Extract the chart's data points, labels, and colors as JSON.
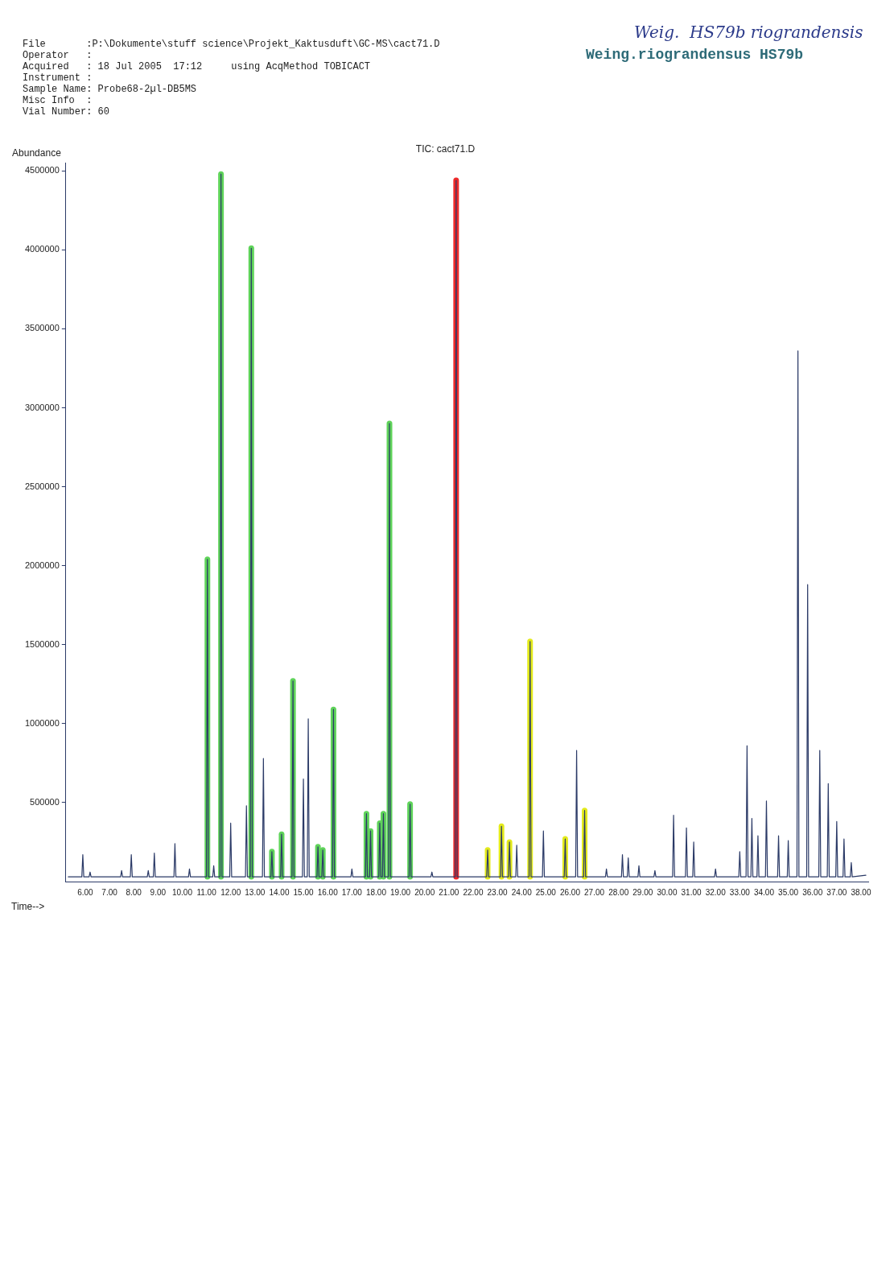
{
  "chart_data": {
    "type": "line",
    "title": "TIC: cact71.D",
    "xlabel": "Time-->",
    "ylabel": "Abundance",
    "annotations": [
      "File       :P:\\Dokumente\\stuff science\\Projekt_Kaktusduft\\GC-MS\\cact71.D",
      "Operator   :",
      "Acquired   : 18 Jul 2005  17:12     using AcqMethod TOBICACT",
      "Instrument :",
      "Sample Name: Probe68-2µl-DB5MS",
      "Misc Info  :",
      "Vial Number: 60",
      "Weig.  HS79b riograndensis",
      "Weing.riograndensus HS79b"
    ],
    "xlim": [
      5.2,
      38.3
    ],
    "xticks": [
      {
        "value": 6,
        "label": "6.00"
      },
      {
        "value": 7,
        "label": "7.00"
      },
      {
        "value": 8,
        "label": "8.00"
      },
      {
        "value": 9,
        "label": "9.00"
      },
      {
        "value": 10,
        "label": "10.00"
      },
      {
        "value": 11,
        "label": "11.00"
      },
      {
        "value": 12,
        "label": "12.00"
      },
      {
        "value": 13,
        "label": "13.00"
      },
      {
        "value": 14,
        "label": "14.00"
      },
      {
        "value": 15,
        "label": "15.00"
      },
      {
        "value": 16,
        "label": "16.00"
      },
      {
        "value": 17,
        "label": "17.00"
      },
      {
        "value": 18,
        "label": "18.00"
      },
      {
        "value": 19,
        "label": "19.00"
      },
      {
        "value": 20,
        "label": "20.00"
      },
      {
        "value": 21,
        "label": "21.00"
      },
      {
        "value": 22,
        "label": "22.00"
      },
      {
        "value": 23,
        "label": "23.00"
      },
      {
        "value": 24,
        "label": "24.00"
      },
      {
        "value": 25,
        "label": "25.00"
      },
      {
        "value": 26,
        "label": "26.00"
      },
      {
        "value": 27,
        "label": "27.00"
      },
      {
        "value": 28,
        "label": "28.00"
      },
      {
        "value": 29,
        "label": "29.00"
      },
      {
        "value": 30,
        "label": "30.00"
      },
      {
        "value": 31,
        "label": "31.00"
      },
      {
        "value": 32,
        "label": "32.00"
      },
      {
        "value": 33,
        "label": "33.00"
      },
      {
        "value": 34,
        "label": "34.00"
      },
      {
        "value": 35,
        "label": "35.00"
      },
      {
        "value": 36,
        "label": "36.00"
      },
      {
        "value": 37,
        "label": "37.00"
      },
      {
        "value": 38,
        "label": "38.00"
      }
    ],
    "ylim": [
      0,
      4550000
    ],
    "yticks": [
      500000,
      1000000,
      1500000,
      2000000,
      2500000,
      3000000,
      3500000,
      4000000,
      4500000
    ],
    "grid": false,
    "legend": false,
    "marker": "none",
    "line_style": "solid",
    "series": [
      {
        "color": "#2b3a67",
        "x": [
          5.3,
          5.86,
          5.9,
          5.94,
          6.16,
          6.2,
          6.24,
          7.46,
          7.5,
          7.54,
          7.86,
          7.9,
          7.94,
          8.56,
          8.6,
          8.64,
          8.81,
          8.85,
          8.89,
          9.66,
          9.7,
          9.74,
          10.26,
          10.3,
          10.34,
          11.0,
          11.04,
          11.08,
          11.26,
          11.3,
          11.34,
          11.56,
          11.6,
          11.64,
          11.96,
          12.0,
          12.04,
          12.61,
          12.65,
          12.69,
          12.81,
          12.85,
          12.89,
          13.31,
          13.35,
          13.39,
          13.66,
          13.7,
          13.74,
          14.06,
          14.1,
          14.14,
          14.53,
          14.57,
          14.61,
          14.96,
          15.0,
          15.04,
          15.16,
          15.2,
          15.24,
          15.56,
          15.6,
          15.64,
          15.76,
          15.8,
          15.84,
          16.2,
          16.24,
          16.28,
          16.96,
          17.0,
          17.04,
          17.56,
          17.6,
          17.64,
          17.73,
          17.77,
          17.81,
          18.11,
          18.15,
          18.19,
          18.26,
          18.3,
          18.34,
          18.51,
          18.55,
          18.59,
          19.36,
          19.4,
          19.44,
          20.26,
          20.3,
          20.34,
          21.26,
          21.3,
          21.34,
          22.56,
          22.6,
          22.64,
          23.13,
          23.17,
          23.21,
          23.46,
          23.5,
          23.54,
          23.76,
          23.8,
          23.84,
          24.31,
          24.35,
          24.39,
          24.86,
          24.9,
          24.94,
          25.76,
          25.8,
          25.84,
          26.23,
          26.27,
          26.31,
          26.56,
          26.6,
          26.64,
          27.46,
          27.5,
          27.54,
          28.12,
          28.16,
          28.2,
          28.36,
          28.4,
          28.44,
          28.8,
          28.84,
          28.88,
          29.46,
          29.5,
          29.54,
          30.23,
          30.27,
          30.31,
          30.76,
          30.8,
          30.84,
          31.06,
          31.1,
          31.14,
          31.96,
          32.0,
          32.04,
          32.96,
          33.0,
          33.04,
          33.26,
          33.3,
          33.34,
          33.46,
          33.5,
          33.54,
          33.71,
          33.75,
          33.79,
          34.06,
          34.1,
          34.14,
          34.56,
          34.6,
          34.64,
          34.96,
          35.0,
          35.04,
          35.36,
          35.4,
          35.44,
          35.76,
          35.8,
          35.84,
          36.26,
          36.3,
          36.34,
          36.61,
          36.65,
          36.69,
          36.96,
          37.0,
          37.04,
          37.26,
          37.3,
          37.34,
          37.56,
          37.6,
          37.64,
          38.2
        ],
        "values": [
          30000,
          30000,
          170000,
          30000,
          30000,
          60000,
          30000,
          30000,
          70000,
          30000,
          30000,
          170000,
          30000,
          30000,
          70000,
          30000,
          30000,
          180000,
          30000,
          30000,
          240000,
          30000,
          30000,
          80000,
          30000,
          30000,
          2040000,
          30000,
          30000,
          100000,
          30000,
          30000,
          4480000,
          30000,
          30000,
          370000,
          30000,
          30000,
          480000,
          30000,
          30000,
          4010000,
          30000,
          30000,
          780000,
          30000,
          30000,
          190000,
          30000,
          30000,
          300000,
          30000,
          30000,
          1270000,
          30000,
          30000,
          650000,
          30000,
          30000,
          1030000,
          30000,
          30000,
          220000,
          30000,
          30000,
          200000,
          30000,
          30000,
          1090000,
          30000,
          30000,
          80000,
          30000,
          30000,
          430000,
          30000,
          30000,
          320000,
          30000,
          30000,
          370000,
          30000,
          30000,
          430000,
          30000,
          30000,
          2900000,
          30000,
          30000,
          490000,
          30000,
          30000,
          60000,
          30000,
          30000,
          4440000,
          30000,
          30000,
          200000,
          30000,
          30000,
          350000,
          30000,
          30000,
          250000,
          30000,
          30000,
          230000,
          30000,
          30000,
          1520000,
          30000,
          30000,
          320000,
          30000,
          30000,
          270000,
          30000,
          30000,
          830000,
          30000,
          30000,
          450000,
          30000,
          30000,
          80000,
          30000,
          30000,
          170000,
          30000,
          30000,
          150000,
          30000,
          30000,
          100000,
          30000,
          30000,
          70000,
          30000,
          30000,
          420000,
          30000,
          30000,
          340000,
          30000,
          30000,
          250000,
          30000,
          30000,
          80000,
          30000,
          30000,
          190000,
          30000,
          30000,
          860000,
          30000,
          30000,
          400000,
          30000,
          30000,
          290000,
          30000,
          30000,
          510000,
          30000,
          30000,
          290000,
          30000,
          30000,
          260000,
          30000,
          30000,
          3360000,
          30000,
          30000,
          1880000,
          30000,
          30000,
          830000,
          30000,
          30000,
          620000,
          30000,
          30000,
          380000,
          30000,
          30000,
          270000,
          30000,
          30000,
          120000,
          30000,
          40000
        ]
      },
      {
        "color": "#5fd35a",
        "x": [
          11.04,
          11.04
        ],
        "values": [
          30000,
          2040000
        ]
      },
      {
        "color": "#5fd35a",
        "x": [
          11.6,
          11.6
        ],
        "values": [
          30000,
          4480000
        ]
      },
      {
        "color": "#5fd35a",
        "x": [
          12.85,
          12.85
        ],
        "values": [
          30000,
          4010000
        ]
      },
      {
        "color": "#5fd35a",
        "x": [
          13.7,
          13.7
        ],
        "values": [
          30000,
          190000
        ]
      },
      {
        "color": "#5fd35a",
        "x": [
          14.1,
          14.1
        ],
        "values": [
          30000,
          300000
        ]
      },
      {
        "color": "#5fd35a",
        "x": [
          14.57,
          14.57
        ],
        "values": [
          30000,
          1270000
        ]
      },
      {
        "color": "#5fd35a",
        "x": [
          15.6,
          15.6
        ],
        "values": [
          30000,
          220000
        ]
      },
      {
        "color": "#5fd35a",
        "x": [
          15.8,
          15.8
        ],
        "values": [
          30000,
          200000
        ]
      },
      {
        "color": "#5fd35a",
        "x": [
          16.24,
          16.24
        ],
        "values": [
          30000,
          1090000
        ]
      },
      {
        "color": "#5fd35a",
        "x": [
          17.6,
          17.6
        ],
        "values": [
          30000,
          430000
        ]
      },
      {
        "color": "#5fd35a",
        "x": [
          17.77,
          17.77
        ],
        "values": [
          30000,
          320000
        ]
      },
      {
        "color": "#5fd35a",
        "x": [
          18.15,
          18.15
        ],
        "values": [
          30000,
          370000
        ]
      },
      {
        "color": "#5fd35a",
        "x": [
          18.3,
          18.3
        ],
        "values": [
          30000,
          430000
        ]
      },
      {
        "color": "#5fd35a",
        "x": [
          18.55,
          18.55
        ],
        "values": [
          30000,
          2900000
        ]
      },
      {
        "color": "#5fd35a",
        "x": [
          19.4,
          19.4
        ],
        "values": [
          30000,
          490000
        ]
      },
      {
        "color": "#ee2a2a",
        "x": [
          21.3,
          21.3
        ],
        "values": [
          30000,
          4440000
        ]
      },
      {
        "color": "#e3ea1c",
        "x": [
          22.6,
          22.6
        ],
        "values": [
          30000,
          200000
        ]
      },
      {
        "color": "#e3ea1c",
        "x": [
          23.17,
          23.17
        ],
        "values": [
          30000,
          350000
        ]
      },
      {
        "color": "#e3ea1c",
        "x": [
          23.5,
          23.5
        ],
        "values": [
          30000,
          250000
        ]
      },
      {
        "color": "#e3ea1c",
        "x": [
          24.35,
          24.35
        ],
        "values": [
          30000,
          1520000
        ]
      },
      {
        "color": "#e3ea1c",
        "x": [
          25.8,
          25.8
        ],
        "values": [
          30000,
          270000
        ]
      },
      {
        "color": "#e3ea1c",
        "x": [
          26.6,
          26.6
        ],
        "values": [
          30000,
          450000
        ]
      }
    ]
  }
}
